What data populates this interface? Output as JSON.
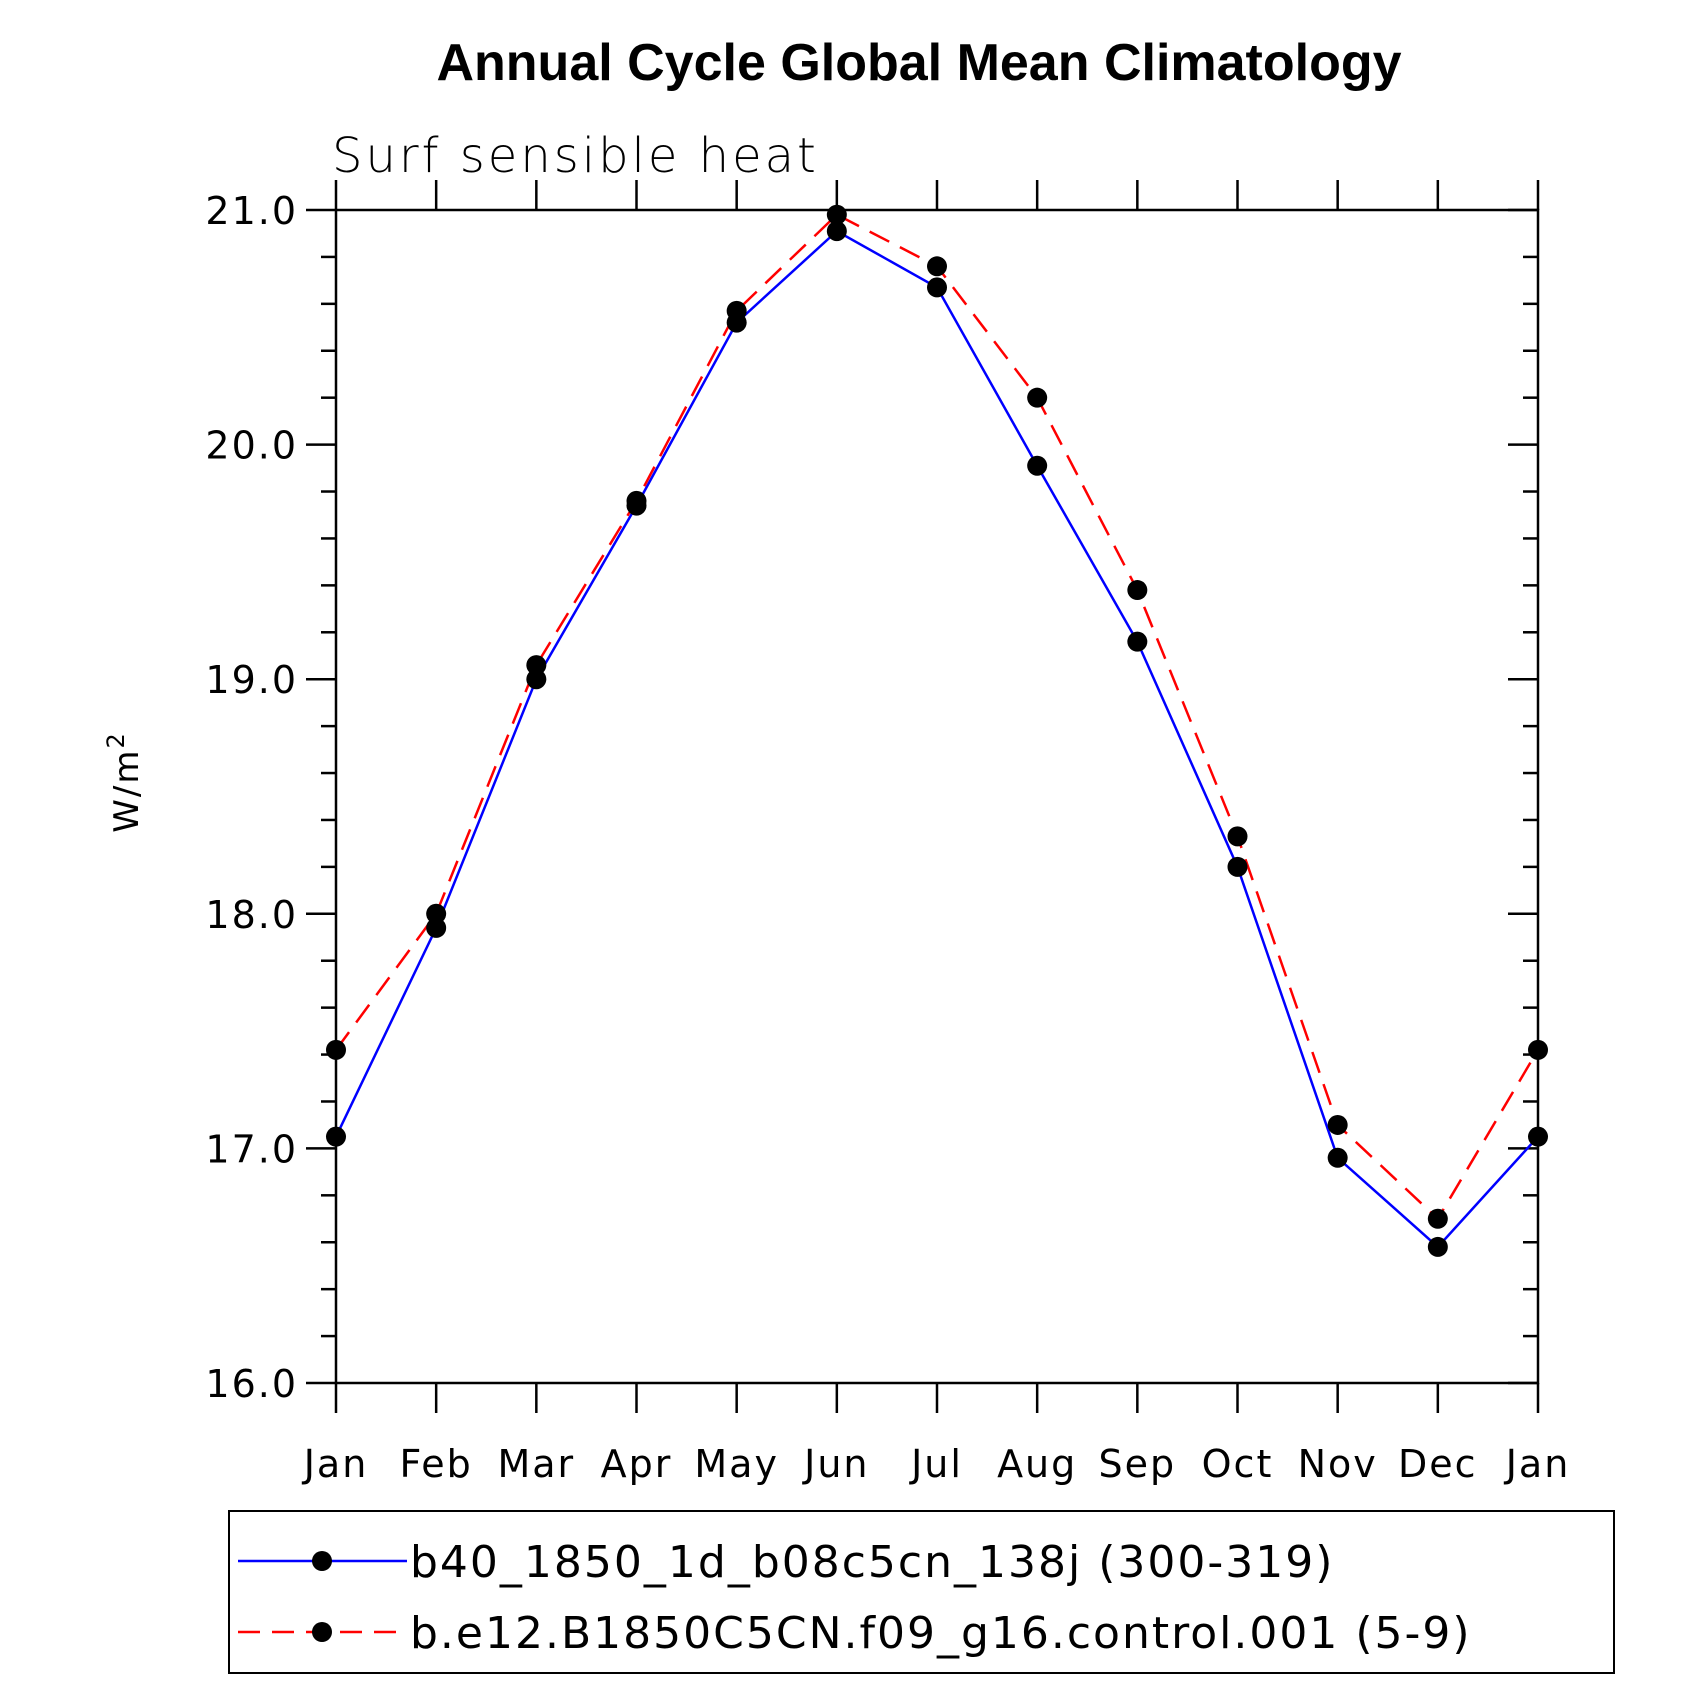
{
  "chart_data": {
    "type": "line",
    "title": "Annual Cycle Global Mean Climatology",
    "subtitle": "Surf sensible heat",
    "ylabel": "W/m",
    "ylabel_superscript": "2",
    "xlabel": "",
    "categories": [
      "Jan",
      "Feb",
      "Mar",
      "Apr",
      "May",
      "Jun",
      "Jul",
      "Aug",
      "Sep",
      "Oct",
      "Nov",
      "Dec",
      "Jan"
    ],
    "ylim": [
      16.0,
      21.0
    ],
    "yticks": [
      "16.0",
      "17.0",
      "18.0",
      "19.0",
      "20.0",
      "21.0"
    ],
    "series": [
      {
        "name": "b40_1850_1d_b08c5cn_138j (300-319)",
        "color": "#0000ff",
        "dash": "solid",
        "values": [
          17.05,
          17.94,
          19.0,
          19.74,
          20.52,
          20.91,
          20.67,
          19.91,
          19.16,
          18.2,
          16.96,
          16.58,
          17.05
        ]
      },
      {
        "name": "b.e12.B1850C5CN.f09_g16.control.001 (5-9)",
        "color": "#ff0000",
        "dash": "dashed",
        "values": [
          17.42,
          18.0,
          19.06,
          19.76,
          20.57,
          20.98,
          20.76,
          20.2,
          19.38,
          18.33,
          17.1,
          16.7,
          17.42
        ]
      }
    ],
    "legend_position": "bottom"
  }
}
